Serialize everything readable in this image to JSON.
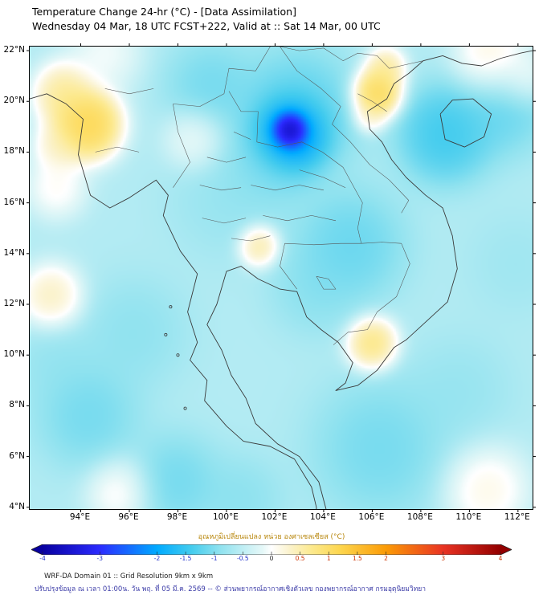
{
  "header": {
    "title": "Temperature Change 24-hr (°C) - [Data Assimilation]",
    "subtitle": "Wednesday 04 Mar, 18 UTC FCST+222, Valid at :: Sat 14 Mar, 00 UTC"
  },
  "axes": {
    "lon": {
      "min": 91.9,
      "max": 112.6,
      "suffix": "°E",
      "ticks": [
        94,
        96,
        98,
        100,
        102,
        104,
        106,
        108,
        110,
        112
      ]
    },
    "lat": {
      "min": 3.93,
      "max": 22.16,
      "suffix": "°N",
      "ticks": [
        22,
        20,
        18,
        16,
        14,
        12,
        10,
        8,
        6,
        4
      ]
    }
  },
  "colorbar": {
    "label": "อุณหภูมิเปลี่ยนแปลง หน่วย องศาเซลเซียส (°C)",
    "min": -4,
    "max": 4,
    "ticks": [
      -4,
      -3,
      -2,
      -1.5,
      -1,
      -0.5,
      0,
      0.5,
      1,
      1.5,
      2,
      3,
      4
    ],
    "negative_tick_color": "#2233cc",
    "positive_tick_color": "#cc3300",
    "zero_tick_color": "#222222"
  },
  "footer": {
    "line1": "WRF-DA Domain 01 :: Grid Resolution 9km x 9km",
    "line2": "ปรับปรุงข้อมูล ณ เวลา 01:00น. วัน พฤ. ที่ 05 มี.ค. 2569 -- © ส่วนพยากรณ์อากาศเชิงตัวเลข กองพยากรณ์อากาศ กรมอุตุนิยมวิทยา"
  },
  "chart_data": {
    "type": "heatmap",
    "title": "Temperature Change 24-hr (°C) - [Data Assimilation]",
    "subtitle": "Wednesday 04 Mar, 18 UTC FCST+222, Valid at :: Sat 14 Mar, 00 UTC",
    "units": "°C",
    "lon_range": [
      91.9,
      112.6
    ],
    "lat_range": [
      3.93,
      22.16
    ],
    "value_range": [
      -4,
      4
    ],
    "base_value": -0.6,
    "base_weight": 0.8,
    "colormap": [
      [
        -4.0,
        "#0800a0"
      ],
      [
        -3.0,
        "#2b2bff"
      ],
      [
        -2.0,
        "#00aaff"
      ],
      [
        -1.4,
        "#44ccee"
      ],
      [
        -0.9,
        "#8fe2ef"
      ],
      [
        -0.5,
        "#bfeef4"
      ],
      [
        -0.15,
        "#e6f8f8"
      ],
      [
        0.0,
        "#ffffff"
      ],
      [
        0.3,
        "#fbf3cf"
      ],
      [
        0.7,
        "#fce98e"
      ],
      [
        1.2,
        "#fdd64e"
      ],
      [
        2.0,
        "#fb9b06"
      ],
      [
        3.0,
        "#e93323"
      ],
      [
        4.0,
        "#930000"
      ]
    ],
    "features": [
      {
        "lon": 102.62,
        "lat": 18.85,
        "r": 0.5,
        "value": -4.4,
        "w": 8.0
      },
      {
        "lon": 102.65,
        "lat": 18.7,
        "r": 1.1,
        "value": -2.8,
        "w": 3.0
      },
      {
        "lon": 102.9,
        "lat": 19.6,
        "r": 2.0,
        "value": -1.5,
        "w": 1.6
      },
      {
        "lon": 101.8,
        "lat": 17.6,
        "r": 1.6,
        "value": -1.2,
        "w": 1.2
      },
      {
        "lon": 109.0,
        "lat": 18.7,
        "r": 1.5,
        "value": -1.7,
        "w": 2.0
      },
      {
        "lon": 111.3,
        "lat": 19.9,
        "r": 1.6,
        "value": -1.4,
        "w": 1.6
      },
      {
        "lon": 105.1,
        "lat": 14.3,
        "r": 1.8,
        "value": -1.4,
        "w": 1.5
      },
      {
        "lon": 103.6,
        "lat": 12.6,
        "r": 1.5,
        "value": -1.1,
        "w": 1.1
      },
      {
        "lon": 100.0,
        "lat": 16.2,
        "r": 2.0,
        "value": -1.0,
        "w": 0.9
      },
      {
        "lon": 99.3,
        "lat": 20.6,
        "r": 1.5,
        "value": -1.3,
        "w": 1.3
      },
      {
        "lon": 96.2,
        "lat": 10.9,
        "r": 1.8,
        "value": -1.1,
        "w": 1.0
      },
      {
        "lon": 94.3,
        "lat": 7.6,
        "r": 1.7,
        "value": -1.3,
        "w": 1.4
      },
      {
        "lon": 97.9,
        "lat": 5.0,
        "r": 1.5,
        "value": -1.3,
        "w": 1.4
      },
      {
        "lon": 100.6,
        "lat": 4.3,
        "r": 1.4,
        "value": -1.1,
        "w": 1.1
      },
      {
        "lon": 106.3,
        "lat": 6.3,
        "r": 2.2,
        "value": -1.3,
        "w": 1.4
      },
      {
        "lon": 109.6,
        "lat": 8.6,
        "r": 1.8,
        "value": -1.0,
        "w": 0.9
      },
      {
        "lon": 111.9,
        "lat": 13.6,
        "r": 1.7,
        "value": -0.9,
        "w": 0.8
      },
      {
        "lon": 92.9,
        "lat": 9.8,
        "r": 1.4,
        "value": -1.0,
        "w": 0.9
      },
      {
        "lon": 94.25,
        "lat": 19.1,
        "r": 1.05,
        "value": 1.4,
        "w": 4.0
      },
      {
        "lon": 93.3,
        "lat": 20.3,
        "r": 0.95,
        "value": 0.9,
        "w": 2.5
      },
      {
        "lon": 93.1,
        "lat": 18.2,
        "r": 0.8,
        "value": 0.6,
        "w": 1.8
      },
      {
        "lon": 95.0,
        "lat": 21.9,
        "r": 1.2,
        "value": 0.2,
        "w": 1.4
      },
      {
        "lon": 106.2,
        "lat": 20.3,
        "r": 0.75,
        "value": 1.4,
        "w": 3.5
      },
      {
        "lon": 106.55,
        "lat": 21.3,
        "r": 0.65,
        "value": 0.9,
        "w": 2.2
      },
      {
        "lon": 105.9,
        "lat": 19.4,
        "r": 0.55,
        "value": 0.6,
        "w": 1.4
      },
      {
        "lon": 110.9,
        "lat": 21.6,
        "r": 1.2,
        "value": 0.7,
        "w": 1.8
      },
      {
        "lon": 112.3,
        "lat": 20.9,
        "r": 0.9,
        "value": 0.4,
        "w": 1.2
      },
      {
        "lon": 101.35,
        "lat": 14.3,
        "r": 0.65,
        "value": 0.9,
        "w": 2.4
      },
      {
        "lon": 106.0,
        "lat": 10.45,
        "r": 0.8,
        "value": 1.1,
        "w": 2.6
      },
      {
        "lon": 92.8,
        "lat": 12.3,
        "r": 1.0,
        "value": 0.7,
        "w": 2.0
      },
      {
        "lon": 110.7,
        "lat": 4.7,
        "r": 1.4,
        "value": 0.5,
        "w": 1.5
      },
      {
        "lon": 93.0,
        "lat": 16.6,
        "r": 1.0,
        "value": 0.35,
        "w": 1.5
      },
      {
        "lon": 98.7,
        "lat": 18.5,
        "r": 1.0,
        "value": 0.2,
        "w": 1.5
      },
      {
        "lon": 95.6,
        "lat": 4.6,
        "r": 1.1,
        "value": 0.4,
        "w": 1.4
      }
    ]
  },
  "map": {
    "coastlines": [
      [
        [
          91.9,
          20.1
        ],
        [
          92.6,
          20.3
        ],
        [
          93.4,
          19.9
        ],
        [
          94.1,
          19.3
        ],
        [
          93.9,
          17.9
        ],
        [
          94.4,
          16.3
        ],
        [
          95.2,
          15.8
        ],
        [
          96.0,
          16.2
        ],
        [
          97.1,
          16.9
        ],
        [
          97.6,
          16.3
        ],
        [
          97.4,
          15.5
        ],
        [
          98.1,
          14.1
        ],
        [
          98.8,
          13.2
        ],
        [
          98.4,
          11.7
        ],
        [
          98.8,
          10.5
        ],
        [
          98.5,
          9.8
        ],
        [
          99.2,
          9.0
        ],
        [
          99.1,
          8.2
        ],
        [
          100.0,
          7.2
        ],
        [
          100.7,
          6.6
        ],
        [
          101.8,
          6.4
        ],
        [
          102.8,
          5.9
        ],
        [
          103.5,
          4.8
        ],
        [
          103.7,
          4.0
        ],
        [
          103.7,
          3.93
        ]
      ],
      [
        [
          104.1,
          3.93
        ],
        [
          103.8,
          5.0
        ],
        [
          103.0,
          6.0
        ],
        [
          102.1,
          6.5
        ],
        [
          101.2,
          7.3
        ],
        [
          100.8,
          8.3
        ],
        [
          100.2,
          9.2
        ],
        [
          99.8,
          10.2
        ],
        [
          99.2,
          11.2
        ],
        [
          99.6,
          12.0
        ],
        [
          100.0,
          13.3
        ],
        [
          100.6,
          13.5
        ],
        [
          101.3,
          13.0
        ],
        [
          102.2,
          12.6
        ],
        [
          102.9,
          12.5
        ],
        [
          103.3,
          11.5
        ],
        [
          103.9,
          11.0
        ],
        [
          104.6,
          10.5
        ],
        [
          105.2,
          9.7
        ],
        [
          104.9,
          8.9
        ],
        [
          104.5,
          8.6
        ],
        [
          105.4,
          8.8
        ],
        [
          106.2,
          9.4
        ],
        [
          106.9,
          10.3
        ],
        [
          107.4,
          10.6
        ],
        [
          108.2,
          11.3
        ],
        [
          109.1,
          12.1
        ],
        [
          109.5,
          13.4
        ],
        [
          109.3,
          14.7
        ],
        [
          108.9,
          15.8
        ],
        [
          108.2,
          16.3
        ],
        [
          107.4,
          17.0
        ],
        [
          106.8,
          17.7
        ],
        [
          106.4,
          18.4
        ],
        [
          105.9,
          18.9
        ],
        [
          105.8,
          19.6
        ],
        [
          106.6,
          20.1
        ],
        [
          106.9,
          20.7
        ],
        [
          107.5,
          21.1
        ],
        [
          108.1,
          21.6
        ]
      ],
      [
        [
          108.1,
          21.6
        ],
        [
          108.9,
          21.8
        ],
        [
          109.7,
          21.5
        ],
        [
          110.5,
          21.4
        ],
        [
          111.3,
          21.7
        ],
        [
          112.1,
          21.9
        ],
        [
          112.6,
          22.0
        ]
      ],
      [
        [
          108.8,
          19.5
        ],
        [
          109.3,
          20.05
        ],
        [
          110.15,
          20.1
        ],
        [
          110.9,
          19.5
        ],
        [
          110.6,
          18.6
        ],
        [
          109.8,
          18.2
        ],
        [
          109.0,
          18.5
        ],
        [
          108.8,
          19.5
        ]
      ]
    ],
    "borders": [
      [
        [
          97.8,
          19.9
        ],
        [
          98.0,
          18.8
        ],
        [
          98.5,
          17.6
        ],
        [
          97.8,
          16.6
        ]
      ],
      [
        [
          100.1,
          20.4
        ],
        [
          100.6,
          19.6
        ],
        [
          101.3,
          19.6
        ],
        [
          101.25,
          18.4
        ],
        [
          102.1,
          18.2
        ],
        [
          103.1,
          18.4
        ],
        [
          103.95,
          18.0
        ],
        [
          104.8,
          17.4
        ],
        [
          105.6,
          16.0
        ],
        [
          105.4,
          15.0
        ],
        [
          105.55,
          14.4
        ]
      ],
      [
        [
          102.4,
          14.4
        ],
        [
          103.6,
          14.35
        ],
        [
          104.7,
          14.4
        ],
        [
          105.55,
          14.4
        ]
      ],
      [
        [
          102.4,
          14.4
        ],
        [
          102.2,
          13.5
        ],
        [
          102.9,
          12.6
        ]
      ],
      [
        [
          102.2,
          22.16
        ],
        [
          102.9,
          21.2
        ],
        [
          103.9,
          20.5
        ],
        [
          104.7,
          19.8
        ],
        [
          104.35,
          19.1
        ],
        [
          105.1,
          18.4
        ],
        [
          105.9,
          17.5
        ],
        [
          106.7,
          16.9
        ],
        [
          107.5,
          16.1
        ],
        [
          107.2,
          15.6
        ]
      ],
      [
        [
          97.8,
          19.9
        ],
        [
          98.9,
          19.8
        ],
        [
          99.9,
          20.3
        ],
        [
          100.1,
          21.3
        ],
        [
          101.2,
          21.2
        ],
        [
          101.8,
          22.16
        ]
      ],
      [
        [
          107.2,
          14.4
        ],
        [
          107.55,
          13.6
        ],
        [
          107.0,
          12.3
        ],
        [
          106.2,
          11.7
        ],
        [
          105.8,
          11.0
        ],
        [
          105.0,
          10.9
        ],
        [
          104.4,
          10.4
        ]
      ],
      [
        [
          105.55,
          14.4
        ],
        [
          106.4,
          14.45
        ],
        [
          107.2,
          14.4
        ]
      ],
      [
        [
          102.2,
          22.16
        ],
        [
          103.0,
          22.0
        ],
        [
          104.0,
          22.1
        ],
        [
          104.8,
          21.6
        ],
        [
          105.4,
          21.9
        ],
        [
          106.2,
          21.8
        ],
        [
          106.7,
          21.3
        ],
        [
          107.4,
          21.45
        ],
        [
          108.1,
          21.6
        ]
      ],
      [
        [
          99.2,
          17.8
        ],
        [
          100.0,
          17.6
        ],
        [
          100.8,
          17.8
        ]
      ],
      [
        [
          99.0,
          15.4
        ],
        [
          99.9,
          15.2
        ],
        [
          100.8,
          15.4
        ]
      ],
      [
        [
          100.2,
          14.6
        ],
        [
          101.0,
          14.5
        ],
        [
          101.8,
          14.7
        ]
      ],
      [
        [
          98.9,
          16.7
        ],
        [
          99.8,
          16.5
        ],
        [
          100.6,
          16.6
        ]
      ],
      [
        [
          101.0,
          16.7
        ],
        [
          102.0,
          16.5
        ],
        [
          103.0,
          16.7
        ],
        [
          104.0,
          16.5
        ]
      ],
      [
        [
          101.5,
          15.5
        ],
        [
          102.5,
          15.3
        ],
        [
          103.5,
          15.5
        ],
        [
          104.5,
          15.3
        ]
      ],
      [
        [
          100.3,
          18.8
        ],
        [
          101.0,
          18.5
        ]
      ],
      [
        [
          103.0,
          17.3
        ],
        [
          104.0,
          17.0
        ],
        [
          104.9,
          16.6
        ]
      ],
      [
        [
          105.4,
          20.3
        ],
        [
          106.0,
          20.0
        ],
        [
          106.6,
          19.6
        ]
      ],
      [
        [
          94.6,
          18.0
        ],
        [
          95.5,
          18.2
        ],
        [
          96.4,
          18.0
        ]
      ],
      [
        [
          95.0,
          20.5
        ],
        [
          96.0,
          20.3
        ],
        [
          97.0,
          20.5
        ]
      ],
      [
        [
          103.7,
          13.1
        ],
        [
          104.2,
          13.0
        ],
        [
          104.5,
          12.6
        ],
        [
          104.0,
          12.6
        ],
        [
          103.7,
          13.1
        ]
      ]
    ],
    "islands": [
      [
        97.7,
        11.9
      ],
      [
        97.5,
        10.8
      ],
      [
        98.0,
        10.0
      ],
      [
        98.3,
        7.9
      ]
    ]
  }
}
